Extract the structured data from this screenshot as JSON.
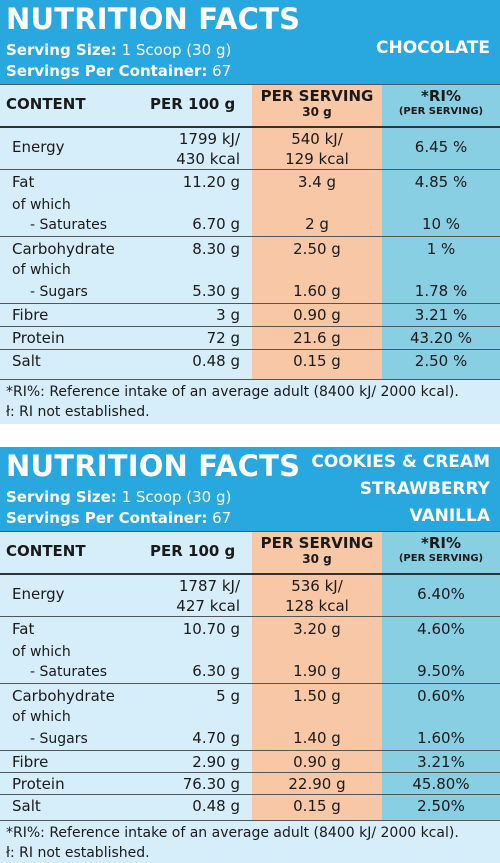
{
  "panels": [
    {
      "title": "NUTRITION FACTS",
      "serving_size_label": "Serving Size:",
      "serving_size_value": "1 Scoop (30 g)",
      "servings_label": "Servings Per Container:",
      "servings_value": "67",
      "flavours": [
        "CHOCOLATE"
      ],
      "header": {
        "content": "CONTENT",
        "per100": "PER 100 g",
        "perserv": "PER SERVING",
        "perserv_sub": "30 g",
        "ri": "*RI%",
        "ri_sub": "(PER SERVING)"
      },
      "rows": {
        "energy": {
          "label": "Energy",
          "per100_a": "1799 kJ/",
          "per100_b": "430 kcal",
          "serv_a": "540 kJ/",
          "serv_b": "129 kcal",
          "ri": "6.45 %"
        },
        "fat": {
          "label": "Fat",
          "per100": "11.20 g",
          "serv": "3.4 g",
          "ri": "4.85 %",
          "of_which": "of which",
          "sat_label": "- Saturates",
          "sat_per100": "6.70 g",
          "sat_serv": "2 g",
          "sat_ri": "10 %"
        },
        "carb": {
          "label": "Carbohydrate",
          "per100": "8.30 g",
          "serv": "2.50 g",
          "ri": "1 %",
          "of_which": "of which",
          "sug_label": "- Sugars",
          "sug_per100": "5.30 g",
          "sug_serv": "1.60 g",
          "sug_ri": "1.78 %"
        },
        "fibre": {
          "label": "Fibre",
          "per100": "3 g",
          "serv": "0.90 g",
          "ri": "3.21 %"
        },
        "protein": {
          "label": "Protein",
          "per100": "72 g",
          "serv": "21.6 g",
          "ri": "43.20 %"
        },
        "salt": {
          "label": "Salt",
          "per100": "0.48 g",
          "serv": "0.15 g",
          "ri": "2.50 %"
        }
      },
      "footnote1": "*RI%:  Reference intake of an average adult (8400 kJ/ 2000 kcal).",
      "footnote2": "ł: RI not established."
    },
    {
      "title": "NUTRITION FACTS",
      "serving_size_label": "Serving Size:",
      "serving_size_value": "1 Scoop (30 g)",
      "servings_label": "Servings Per Container:",
      "servings_value": "67",
      "flavours": [
        "COOKIES & CREAM",
        "STRAWBERRY",
        "VANILLA"
      ],
      "header": {
        "content": "CONTENT",
        "per100": "PER 100 g",
        "perserv": "PER SERVING",
        "perserv_sub": "30 g",
        "ri": "*RI%",
        "ri_sub": "(PER SERVING)"
      },
      "rows": {
        "energy": {
          "label": "Energy",
          "per100_a": "1787 kJ/",
          "per100_b": "427 kcal",
          "serv_a": "536 kJ/",
          "serv_b": "128 kcal",
          "ri": "6.40%"
        },
        "fat": {
          "label": "Fat",
          "per100": "10.70 g",
          "serv": "3.20 g",
          "ri": "4.60%",
          "of_which": "of which",
          "sat_label": "- Saturates",
          "sat_per100": "6.30 g",
          "sat_serv": "1.90 g",
          "sat_ri": "9.50%"
        },
        "carb": {
          "label": "Carbohydrate",
          "per100": "5 g",
          "serv": "1.50 g",
          "ri": "0.60%",
          "of_which": "of which",
          "sug_label": "- Sugars",
          "sug_per100": "4.70 g",
          "sug_serv": "1.40 g",
          "sug_ri": "1.60%"
        },
        "fibre": {
          "label": "Fibre",
          "per100": "2.90 g",
          "serv": "0.90 g",
          "ri": "3.21%"
        },
        "protein": {
          "label": "Protein",
          "per100": "76.30 g",
          "serv": "22.90 g",
          "ri": "45.80%"
        },
        "salt": {
          "label": "Salt",
          "per100": "0.48 g",
          "serv": "0.15 g",
          "ri": "2.50%"
        }
      },
      "footnote1": "*RI%:  Reference intake of an average adult (8400 kJ/ 2000 kcal).",
      "footnote2": "ł: RI not established."
    }
  ],
  "colors": {
    "header_blue": "#29a8e0",
    "table_light_blue": "#d6eefa",
    "per_serving_peach": "#f8c7a6",
    "ri_teal": "#88cfe3"
  }
}
